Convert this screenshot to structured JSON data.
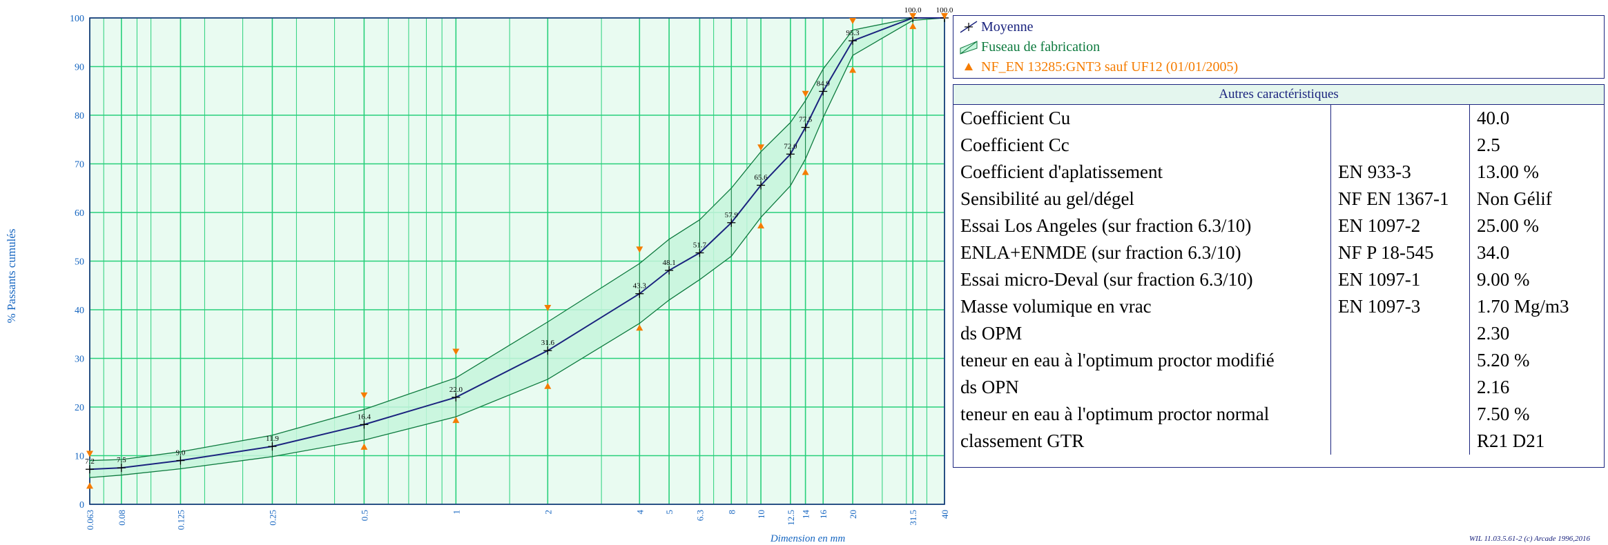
{
  "chart_data": {
    "type": "line",
    "xscale": "log",
    "ylabel": "% Passants cumulés",
    "xlabel": "Dimension en mm",
    "ylim": [
      0,
      100
    ],
    "xlim": [
      0.063,
      40
    ],
    "yticks": [
      0,
      10,
      20,
      30,
      40,
      50,
      60,
      70,
      80,
      90,
      100
    ],
    "xticks": [
      "0.063",
      "0.08",
      "0.125",
      "0.25",
      "0.5",
      "1",
      "2",
      "4",
      "5",
      "6.3",
      "8",
      "10",
      "12.5",
      "14",
      "16",
      "20",
      "31.5",
      "40"
    ],
    "x_major": [
      0.063,
      0.08,
      0.125,
      0.25,
      0.5,
      1,
      2,
      4,
      5,
      6.3,
      8,
      10,
      12.5,
      14,
      16,
      20,
      31.5,
      40
    ],
    "x_minor": [
      0.07,
      0.09,
      0.1,
      0.15,
      0.2,
      0.3,
      0.4,
      0.6,
      0.7,
      0.8,
      0.9,
      1.5,
      3,
      7,
      9,
      25,
      30,
      35
    ],
    "grid": true,
    "series": [
      {
        "name": "Moyenne",
        "x": [
          0.063,
          0.08,
          0.125,
          0.25,
          0.5,
          1,
          2,
          4,
          5,
          6.3,
          8,
          10,
          12.5,
          14,
          16,
          20,
          31.5,
          40
        ],
        "values": [
          7.2,
          7.5,
          9.0,
          11.9,
          16.4,
          22.0,
          31.6,
          43.3,
          48.1,
          51.7,
          57.9,
          65.6,
          72.0,
          77.5,
          84.9,
          95.3,
          100.0,
          100.0
        ],
        "labels": [
          "7.2",
          "7.5",
          "9.0",
          "11.9",
          "16.4",
          "22.0",
          "31.6",
          "43.3",
          "48.1",
          "51.7",
          "57.9",
          "65.6",
          "72.0",
          "77.5",
          "84.9",
          "95.3",
          "100.0",
          "100.0"
        ]
      },
      {
        "name": "Fuseau de fabrication",
        "x": [
          0.063,
          0.08,
          0.125,
          0.25,
          0.5,
          1,
          2,
          4,
          5,
          6.3,
          8,
          10,
          12.5,
          14,
          16,
          20,
          31.5,
          40
        ],
        "upper": [
          9.0,
          9.2,
          10.8,
          14.2,
          19.5,
          26.0,
          37.5,
          49.5,
          54.5,
          58.5,
          65.0,
          72.5,
          78.5,
          83.0,
          89.5,
          97.5,
          100.0,
          100.0
        ],
        "lower": [
          5.5,
          6.0,
          7.3,
          9.8,
          13.2,
          18.0,
          25.7,
          37.2,
          42.0,
          46.2,
          51.0,
          59.0,
          65.5,
          71.0,
          79.5,
          92.3,
          99.5,
          100.0
        ]
      }
    ],
    "spec_points": {
      "name": "NF_EN 13285:GNT3 sauf UF12 (01/01/2005)",
      "max": [
        {
          "x": 0.063,
          "y": 10
        },
        {
          "x": 0.5,
          "y": 22
        },
        {
          "x": 1,
          "y": 31
        },
        {
          "x": 2,
          "y": 40
        },
        {
          "x": 4,
          "y": 52
        },
        {
          "x": 10,
          "y": 73
        },
        {
          "x": 14,
          "y": 84
        },
        {
          "x": 20,
          "y": 99
        },
        {
          "x": 31.5,
          "y": 100
        },
        {
          "x": 40,
          "y": 100
        }
      ],
      "min": [
        {
          "x": 0.063,
          "y": 3.5
        },
        {
          "x": 0.5,
          "y": 11.5
        },
        {
          "x": 1,
          "y": 17
        },
        {
          "x": 2,
          "y": 24
        },
        {
          "x": 4,
          "y": 36
        },
        {
          "x": 10,
          "y": 57
        },
        {
          "x": 14,
          "y": 68
        },
        {
          "x": 20,
          "y": 89
        },
        {
          "x": 31.5,
          "y": 98
        }
      ]
    },
    "legend_placement": "top-right",
    "colors": {
      "grid": "#27d07a",
      "band_fill": "#c6f5dc",
      "band_edge": "#0d7a3e",
      "mean": "#1a237e",
      "spec": "#f57c00",
      "axis_text": "#1565c0"
    }
  },
  "legend": {
    "mean_label": "Moyenne",
    "band_label": "Fuseau de fabrication",
    "spec_label": "NF_EN 13285:GNT3 sauf UF12 (01/01/2005)"
  },
  "table": {
    "title": "Autres caractéristiques",
    "rows": [
      {
        "name": "Coefficient Cu",
        "norm": "",
        "value": "40.0"
      },
      {
        "name": "Coefficient Cc",
        "norm": "",
        "value": "2.5"
      },
      {
        "name": "Coefficient d'aplatissement",
        "norm": "EN 933-3",
        "value": "13.00 %"
      },
      {
        "name": "Sensibilité au gel/dégel",
        "norm": "NF EN 1367-1",
        "value": "Non Gélif"
      },
      {
        "name": "Essai Los Angeles (sur fraction 6.3/10)",
        "norm": "EN 1097-2",
        "value": "25.00 %"
      },
      {
        "name": "ENLA+ENMDE (sur fraction 6.3/10)",
        "norm": "NF P 18-545",
        "value": "34.0"
      },
      {
        "name": "Essai micro-Deval (sur fraction 6.3/10)",
        "norm": "EN 1097-1",
        "value": "9.00 %"
      },
      {
        "name": "Masse volumique en vrac",
        "norm": "EN 1097-3",
        "value": "1.70 Mg/m3"
      },
      {
        "name": "ds OPM",
        "norm": "",
        "value": "2.30"
      },
      {
        "name": "teneur en eau à l'optimum proctor modifié",
        "norm": "",
        "value": "5.20 %"
      },
      {
        "name": "ds OPN",
        "norm": "",
        "value": "2.16"
      },
      {
        "name": "teneur en eau à l'optimum proctor normal",
        "norm": "",
        "value": "7.50 %"
      },
      {
        "name": "classement GTR",
        "norm": "",
        "value": "R21 D21"
      }
    ]
  },
  "footer": "WIL 11.03.5.61-2 (c) Arcade 1996,2016"
}
